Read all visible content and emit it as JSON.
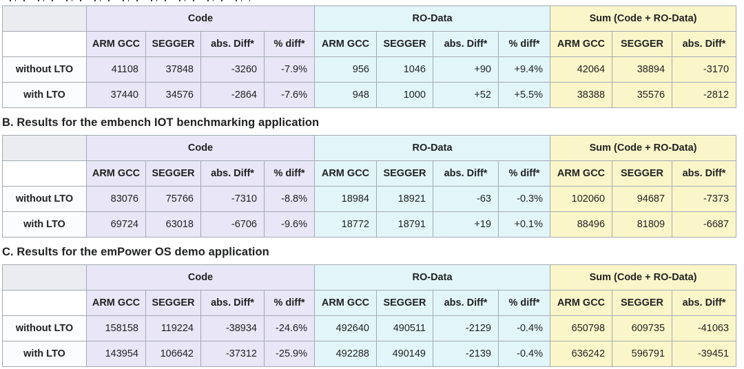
{
  "structure": {
    "groups": [
      {
        "key": "code",
        "label": "Code",
        "color": "#e9e6f7",
        "columns": [
          "ARM GCC",
          "SEGGER",
          "abs. Diff*",
          "% diff*"
        ]
      },
      {
        "key": "ro_data",
        "label": "RO-Data",
        "color": "#e2f6fa",
        "columns": [
          "ARM GCC",
          "SEGGER",
          "abs. Diff*",
          "% diff*"
        ]
      },
      {
        "key": "sum",
        "label": "Sum (Code + RO-Data)",
        "color": "#fbf6c9",
        "columns": [
          "ARM GCC",
          "SEGGER",
          "abs. Diff*"
        ]
      }
    ]
  },
  "colors": {
    "border": "#a2a9b1",
    "corner_bg": "#eaecf0",
    "text": "#202122",
    "code_bg": "#e9e6f7",
    "ro_data_bg": "#e2f6fa",
    "sum_bg": "#fbf6c9"
  },
  "tables": [
    {
      "section": "A",
      "rows": [
        {
          "label": "without LTO",
          "code": [
            "41108",
            "37848",
            "-3260",
            "-7.9%"
          ],
          "ro_data": [
            "956",
            "1046",
            "+90",
            "+9.4%"
          ],
          "sum": [
            "42064",
            "38894",
            "-3170"
          ]
        },
        {
          "label": "with LTO",
          "code": [
            "37440",
            "34576",
            "-2864",
            "-7.6%"
          ],
          "ro_data": [
            "948",
            "1000",
            "+52",
            "+5.5%"
          ],
          "sum": [
            "38388",
            "35576",
            "-2812"
          ]
        }
      ]
    },
    {
      "section": "B",
      "title": "B. Results for the embench IOT benchmarking application",
      "rows": [
        {
          "label": "without LTO",
          "code": [
            "83076",
            "75766",
            "-7310",
            "-8.8%"
          ],
          "ro_data": [
            "18984",
            "18921",
            "-63",
            "-0.3%"
          ],
          "sum": [
            "102060",
            "94687",
            "-7373"
          ]
        },
        {
          "label": "with LTO",
          "code": [
            "69724",
            "63018",
            "-6706",
            "-9.6%"
          ],
          "ro_data": [
            "18772",
            "18791",
            "+19",
            "+0.1%"
          ],
          "sum": [
            "88496",
            "81809",
            "-6687"
          ]
        }
      ]
    },
    {
      "section": "C",
      "title": "C. Results for the emPower OS demo application",
      "rows": [
        {
          "label": "without LTO",
          "code": [
            "158158",
            "119224",
            "-38934",
            "-24.6%"
          ],
          "ro_data": [
            "492640",
            "490511",
            "-2129",
            "-0.4%"
          ],
          "sum": [
            "650798",
            "609735",
            "-41063"
          ]
        },
        {
          "label": "with LTO",
          "code": [
            "143954",
            "106642",
            "-37312",
            "-25.9%"
          ],
          "ro_data": [
            "492288",
            "490149",
            "-2139",
            "-0.4%"
          ],
          "sum": [
            "636242",
            "596791",
            "-39451"
          ]
        }
      ]
    }
  ]
}
